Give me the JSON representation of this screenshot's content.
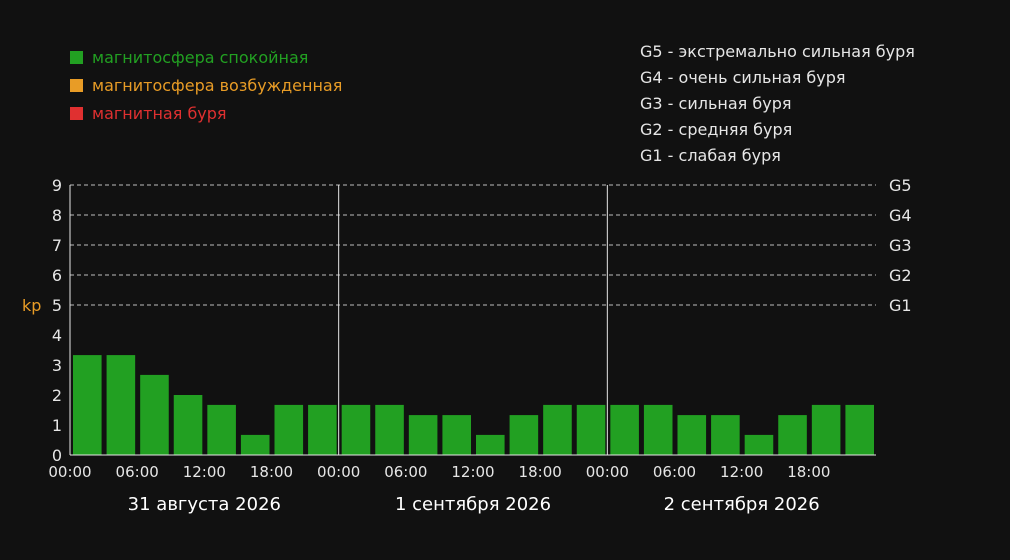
{
  "legend": [
    {
      "label": "магнитосфера спокойная",
      "color": "#22a022"
    },
    {
      "label": "магнитосфера возбужденная",
      "color": "#e89c26"
    },
    {
      "label": "магнитная буря",
      "color": "#e03030"
    }
  ],
  "storm_scale": [
    "G5 - экстремально сильная буря",
    "G4 - очень сильная буря",
    "G3 - сильная буря",
    "G2 - средняя буря",
    "G1 - слабая буря"
  ],
  "chart_data": {
    "type": "bar",
    "ylabel": "kp",
    "ylim": [
      0,
      9
    ],
    "yticks": [
      "0",
      "1",
      "2",
      "3",
      "4",
      "5",
      "6",
      "7",
      "8",
      "9"
    ],
    "grid": "dashed, y = 5..9",
    "g_levels": [
      {
        "label": "G1",
        "kp": 5
      },
      {
        "label": "G2",
        "kp": 6
      },
      {
        "label": "G3",
        "kp": 7
      },
      {
        "label": "G4",
        "kp": 8
      },
      {
        "label": "G5",
        "kp": 9
      }
    ],
    "days": [
      "31 августа 2026",
      "1 сентября 2026",
      "2 сентября 2026"
    ],
    "time_ticks": [
      "00:00",
      "06:00",
      "12:00",
      "18:00"
    ],
    "bar_color": "#22a022",
    "values": [
      3.33,
      3.33,
      2.67,
      2.0,
      1.67,
      0.67,
      1.67,
      1.67,
      1.67,
      1.67,
      1.33,
      1.33,
      0.67,
      1.33,
      1.67,
      1.67,
      1.67,
      1.67,
      1.33,
      1.33,
      0.67,
      1.33,
      1.67,
      1.67
    ]
  }
}
